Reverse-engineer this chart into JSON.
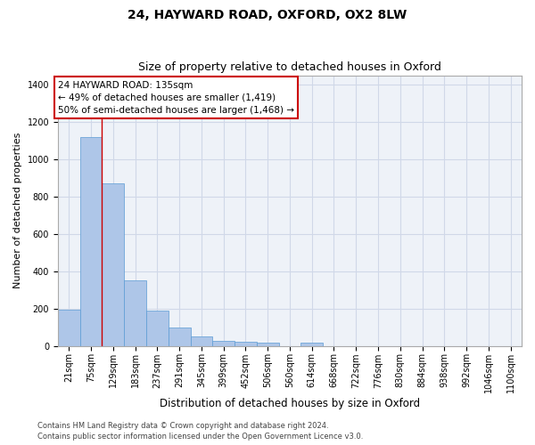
{
  "title": "24, HAYWARD ROAD, OXFORD, OX2 8LW",
  "subtitle": "Size of property relative to detached houses in Oxford",
  "xlabel": "Distribution of detached houses by size in Oxford",
  "ylabel": "Number of detached properties",
  "categories": [
    "21sqm",
    "75sqm",
    "129sqm",
    "183sqm",
    "237sqm",
    "291sqm",
    "345sqm",
    "399sqm",
    "452sqm",
    "506sqm",
    "560sqm",
    "614sqm",
    "668sqm",
    "722sqm",
    "776sqm",
    "830sqm",
    "884sqm",
    "938sqm",
    "992sqm",
    "1046sqm",
    "1100sqm"
  ],
  "values": [
    195,
    1120,
    870,
    350,
    190,
    100,
    50,
    25,
    20,
    18,
    0,
    15,
    0,
    0,
    0,
    0,
    0,
    0,
    0,
    0,
    0
  ],
  "bar_color": "#aec6e8",
  "bar_edge_color": "#5b9bd5",
  "grid_color": "#d0d8e8",
  "background_color": "#eef2f8",
  "annotation_box_line1": "24 HAYWARD ROAD: 135sqm",
  "annotation_box_line2": "← 49% of detached houses are smaller (1,419)",
  "annotation_box_line3": "50% of semi-detached houses are larger (1,468) →",
  "annotation_box_color": "#ffffff",
  "annotation_box_edge_color": "#cc0000",
  "vline_x": 1.5,
  "vline_color": "#cc0000",
  "ylim": [
    0,
    1450
  ],
  "yticks": [
    0,
    200,
    400,
    600,
    800,
    1000,
    1200,
    1400
  ],
  "footer1": "Contains HM Land Registry data © Crown copyright and database right 2024.",
  "footer2": "Contains public sector information licensed under the Open Government Licence v3.0.",
  "title_fontsize": 10,
  "subtitle_fontsize": 9,
  "tick_fontsize": 7,
  "ylabel_fontsize": 8,
  "xlabel_fontsize": 8.5,
  "annotation_fontsize": 7.5,
  "footer_fontsize": 6
}
